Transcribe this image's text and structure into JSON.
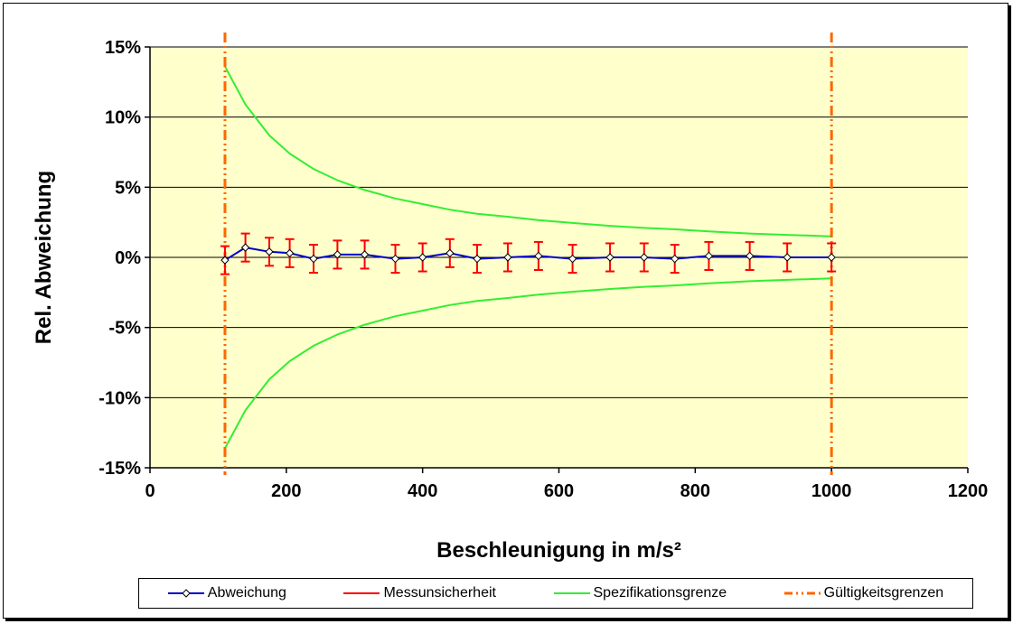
{
  "chart_data": {
    "type": "line",
    "xlabel": "Beschleunigung in m/s²",
    "ylabel": "Rel. Abweichung",
    "xlim": [
      0,
      1200
    ],
    "ylim": [
      -15,
      15
    ],
    "x_ticks": [
      "0",
      "200",
      "400",
      "600",
      "800",
      "1000",
      "1200"
    ],
    "y_ticks": [
      "15%",
      "10%",
      "5%",
      "0%",
      "-5%",
      "-10%",
      "-15%"
    ],
    "grid": "horizontal",
    "legend_position": "bottom",
    "plot_background": "#FFFFCC",
    "series": [
      {
        "name": "Abweichung",
        "color": "#0000CC",
        "marker": "diamond",
        "x": [
          110,
          140,
          175,
          205,
          240,
          275,
          315,
          360,
          400,
          440,
          480,
          525,
          570,
          620,
          675,
          725,
          770,
          820,
          880,
          935,
          1000
        ],
        "y": [
          -0.2,
          0.7,
          0.4,
          0.3,
          -0.1,
          0.2,
          0.2,
          -0.1,
          0.0,
          0.3,
          -0.1,
          0.0,
          0.1,
          -0.1,
          0.0,
          0.0,
          -0.1,
          0.1,
          0.1,
          0.0,
          0.0
        ]
      },
      {
        "name": "Messunsicherheit",
        "color": "#FF0000",
        "type": "error_bars",
        "uncertainty": 1.0
      },
      {
        "name": "Spezifikationsgrenze",
        "color": "#33EE33",
        "x": [
          110,
          140,
          175,
          205,
          240,
          275,
          315,
          360,
          400,
          440,
          480,
          525,
          570,
          620,
          675,
          725,
          770,
          820,
          880,
          935,
          1000
        ],
        "y_upper": [
          13.6,
          10.9,
          8.7,
          7.4,
          6.3,
          5.5,
          4.8,
          4.2,
          3.8,
          3.4,
          3.1,
          2.9,
          2.65,
          2.45,
          2.25,
          2.1,
          2.0,
          1.85,
          1.7,
          1.6,
          1.5
        ],
        "y_lower": [
          -13.6,
          -10.9,
          -8.7,
          -7.4,
          -6.3,
          -5.5,
          -4.8,
          -4.2,
          -3.8,
          -3.4,
          -3.1,
          -2.9,
          -2.65,
          -2.45,
          -2.25,
          -2.1,
          -2.0,
          -1.85,
          -1.7,
          -1.6,
          -1.5
        ]
      },
      {
        "name": "Gültigkeitsgrenzen",
        "color": "#FF6600",
        "dash": "dash-dot-dot",
        "x_positions": [
          110,
          1000
        ]
      }
    ]
  }
}
